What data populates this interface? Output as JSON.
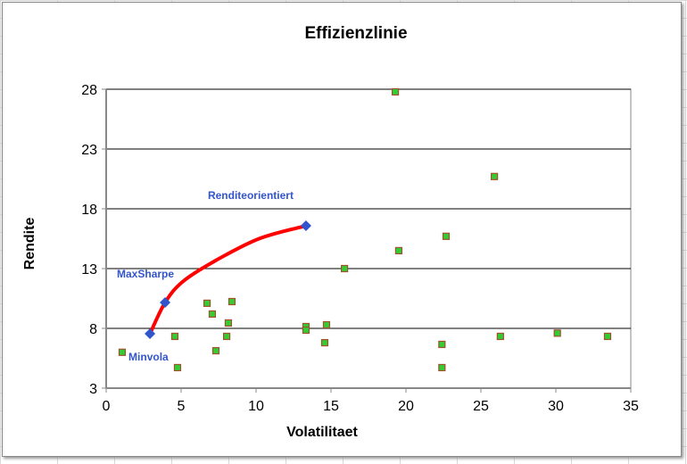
{
  "chart_data": {
    "type": "scatter",
    "title": "Effizienzlinie",
    "xlabel": "Volatilitaet",
    "ylabel": "Rendite",
    "xlim": [
      0,
      35
    ],
    "ylim": [
      3,
      28
    ],
    "xticks": [
      0,
      5,
      10,
      15,
      20,
      25,
      30,
      35
    ],
    "yticks": [
      3,
      8,
      13,
      18,
      23,
      28
    ],
    "grid": "horizontal",
    "colors": {
      "assets": "#33cc33",
      "asset_border": "#a0522d",
      "frontier": "#ff0000",
      "portfolio": "#3355cc",
      "label": "#3355cc"
    },
    "assets": [
      [
        1.07,
        6.0
      ],
      [
        4.58,
        7.33
      ],
      [
        4.76,
        4.72
      ],
      [
        6.73,
        10.1
      ],
      [
        7.08,
        9.2
      ],
      [
        7.32,
        6.13
      ],
      [
        8.04,
        7.33
      ],
      [
        8.15,
        8.45
      ],
      [
        8.39,
        10.24
      ],
      [
        13.33,
        8.15
      ],
      [
        13.33,
        7.85
      ],
      [
        14.58,
        6.8
      ],
      [
        14.7,
        8.3
      ],
      [
        15.9,
        13.0
      ],
      [
        19.29,
        27.78
      ],
      [
        19.52,
        14.5
      ],
      [
        22.4,
        6.66
      ],
      [
        22.4,
        4.72
      ],
      [
        22.68,
        15.7
      ],
      [
        25.9,
        20.7
      ],
      [
        26.3,
        7.33
      ],
      [
        30.1,
        7.6
      ],
      [
        33.45,
        7.33
      ]
    ],
    "frontier": [
      [
        2.92,
        7.55
      ],
      [
        3.93,
        10.16
      ],
      [
        5.1,
        11.9
      ],
      [
        7.2,
        13.6
      ],
      [
        10.2,
        15.5
      ],
      [
        13.33,
        16.58
      ]
    ],
    "portfolios": [
      {
        "name": "Minvola",
        "x": 2.92,
        "y": 7.55
      },
      {
        "name": "MaxSharpe",
        "x": 3.93,
        "y": 10.16
      },
      {
        "name": "Renditeorientiert",
        "x": 13.33,
        "y": 16.58
      }
    ]
  }
}
